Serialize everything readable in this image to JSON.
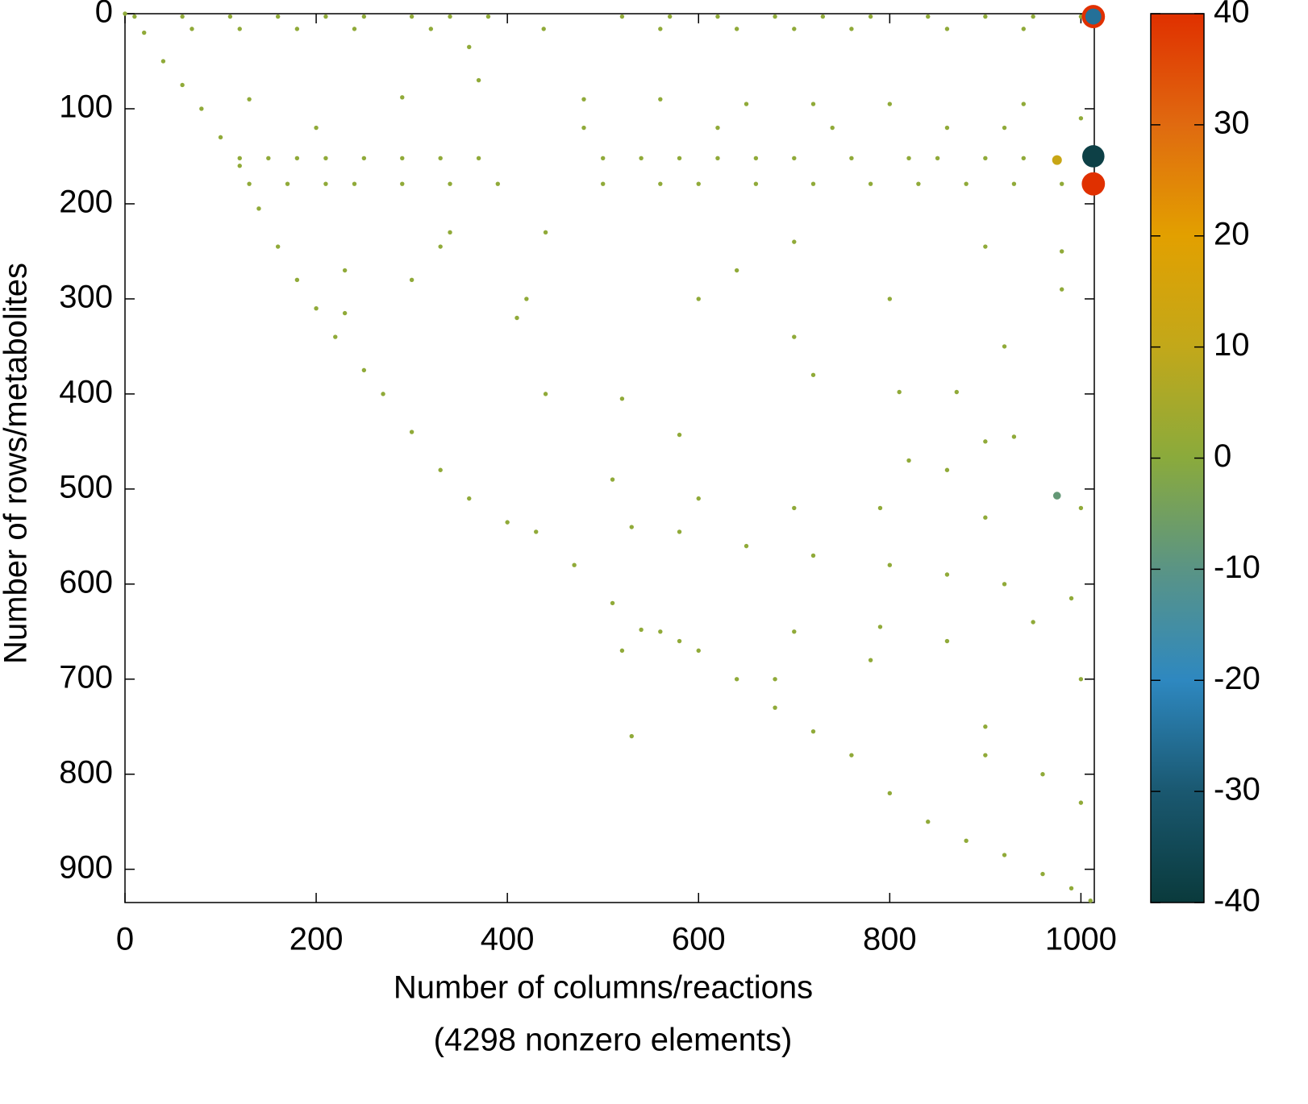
{
  "chart_data": {
    "type": "scatter",
    "xlabel": [
      "Number of columns/reactions",
      "(4298 nonzero elements)"
    ],
    "ylabel": "Number of rows/metabolites",
    "x": [
      0,
      20,
      40,
      60,
      80,
      100,
      120,
      140,
      160,
      180,
      200,
      220,
      250,
      270,
      300,
      330,
      360,
      400,
      430,
      470,
      510,
      540,
      560,
      600,
      640,
      680,
      720,
      760,
      800,
      840,
      880,
      920,
      960,
      990,
      1010,
      10,
      60,
      110,
      160,
      210,
      250,
      300,
      340,
      380,
      520,
      570,
      620,
      680,
      730,
      780,
      840,
      900,
      950,
      1000,
      70,
      120,
      180,
      240,
      320,
      438,
      560,
      640,
      700,
      760,
      860,
      940,
      120,
      150,
      180,
      210,
      250,
      290,
      330,
      370,
      500,
      540,
      580,
      620,
      660,
      700,
      760,
      820,
      850,
      900,
      940,
      130,
      170,
      210,
      240,
      290,
      340,
      390,
      500,
      560,
      600,
      660,
      720,
      780,
      830,
      880,
      930,
      980,
      360,
      370,
      130,
      290,
      480,
      560,
      650,
      720,
      800,
      940,
      1000,
      200,
      480,
      620,
      740,
      860,
      920,
      340,
      440,
      330,
      230,
      640,
      700,
      900,
      980,
      300,
      420,
      600,
      800,
      980,
      230,
      410,
      700,
      920,
      440,
      720,
      810,
      870,
      520,
      900,
      930,
      580,
      820,
      860,
      510,
      600,
      700,
      790,
      900,
      1000,
      530,
      580,
      650,
      720,
      800,
      860,
      920,
      990,
      520,
      580,
      700,
      790,
      860,
      950,
      680,
      780,
      900,
      960,
      1000,
      900,
      1000,
      530,
      1013,
      1013,
      1013,
      1013,
      975,
      975
    ],
    "y": [
      0,
      20,
      50,
      75,
      100,
      130,
      160,
      205,
      245,
      280,
      310,
      340,
      375,
      400,
      440,
      480,
      510,
      535,
      545,
      580,
      620,
      648,
      650,
      670,
      700,
      730,
      755,
      780,
      820,
      850,
      870,
      885,
      905,
      920,
      933,
      3,
      3,
      3,
      3,
      3,
      3,
      3,
      3,
      3,
      3,
      3,
      3,
      3,
      3,
      3,
      3,
      3,
      3,
      3,
      16,
      16,
      16,
      16,
      16,
      16,
      16,
      16,
      16,
      16,
      16,
      16,
      152,
      152,
      152,
      152,
      152,
      152,
      152,
      152,
      152,
      152,
      152,
      152,
      152,
      152,
      152,
      152,
      152,
      152,
      152,
      179,
      179,
      179,
      179,
      179,
      179,
      179,
      179,
      179,
      179,
      179,
      179,
      179,
      179,
      179,
      179,
      179,
      35,
      70,
      90,
      88,
      90,
      90,
      95,
      95,
      95,
      95,
      110,
      120,
      120,
      120,
      120,
      120,
      120,
      230,
      230,
      245,
      270,
      270,
      240,
      245,
      250,
      280,
      300,
      300,
      300,
      290,
      315,
      320,
      340,
      350,
      400,
      380,
      398,
      398,
      405,
      450,
      445,
      443,
      470,
      480,
      490,
      510,
      520,
      520,
      530,
      520,
      540,
      545,
      560,
      570,
      580,
      590,
      600,
      615,
      670,
      660,
      650,
      645,
      660,
      640,
      700,
      680,
      750,
      800,
      830,
      780,
      700,
      760,
      3,
      3,
      150,
      179,
      154,
      507
    ],
    "values": [
      1,
      1,
      1,
      1,
      1,
      1,
      1,
      1,
      1,
      1,
      1,
      1,
      1,
      1,
      1,
      1,
      1,
      1,
      1,
      1,
      1,
      1,
      1,
      1,
      1,
      1,
      1,
      1,
      1,
      1,
      1,
      1,
      1,
      1,
      1,
      1,
      1,
      1,
      1,
      1,
      1,
      1,
      1,
      1,
      1,
      1,
      1,
      1,
      1,
      1,
      1,
      1,
      1,
      1,
      1,
      1,
      1,
      1,
      1,
      1,
      1,
      1,
      1,
      1,
      1,
      1,
      1,
      1,
      1,
      1,
      1,
      1,
      1,
      1,
      1,
      1,
      1,
      1,
      1,
      1,
      1,
      1,
      1,
      1,
      1,
      1,
      1,
      1,
      1,
      1,
      1,
      1,
      1,
      1,
      1,
      1,
      1,
      1,
      1,
      1,
      1,
      1,
      1,
      1,
      1,
      1,
      1,
      1,
      1,
      1,
      1,
      1,
      1,
      1,
      1,
      1,
      1,
      1,
      1,
      1,
      1,
      1,
      1,
      1,
      1,
      1,
      1,
      1,
      1,
      1,
      1,
      1,
      1,
      1,
      1,
      1,
      1,
      1,
      1,
      1,
      1,
      1,
      1,
      1,
      1,
      1,
      1,
      1,
      1,
      1,
      1,
      1,
      1,
      1,
      1,
      1,
      1,
      1,
      1,
      1,
      1,
      1,
      1,
      1,
      1,
      1,
      1,
      1,
      1,
      1,
      1,
      1,
      1,
      1,
      40,
      -25,
      -38,
      40,
      12,
      -8
    ],
    "xlim": [
      0,
      1014
    ],
    "ylim": [
      935,
      0
    ],
    "xticks": [
      0,
      200,
      400,
      600,
      800,
      1000
    ],
    "yticks": [
      0,
      100,
      200,
      300,
      400,
      500,
      600,
      700,
      800,
      900
    ],
    "clim": [
      -40,
      40
    ],
    "cticks": [
      -40,
      -30,
      -20,
      -10,
      0,
      10,
      20,
      30,
      40
    ],
    "colormap": [
      "#0a3a3c",
      "#1a5870",
      "#2e88c0",
      "#5a9485",
      "#8aaa3c",
      "#c2a81a",
      "#e2a000",
      "#e06a10",
      "#e03000"
    ]
  }
}
